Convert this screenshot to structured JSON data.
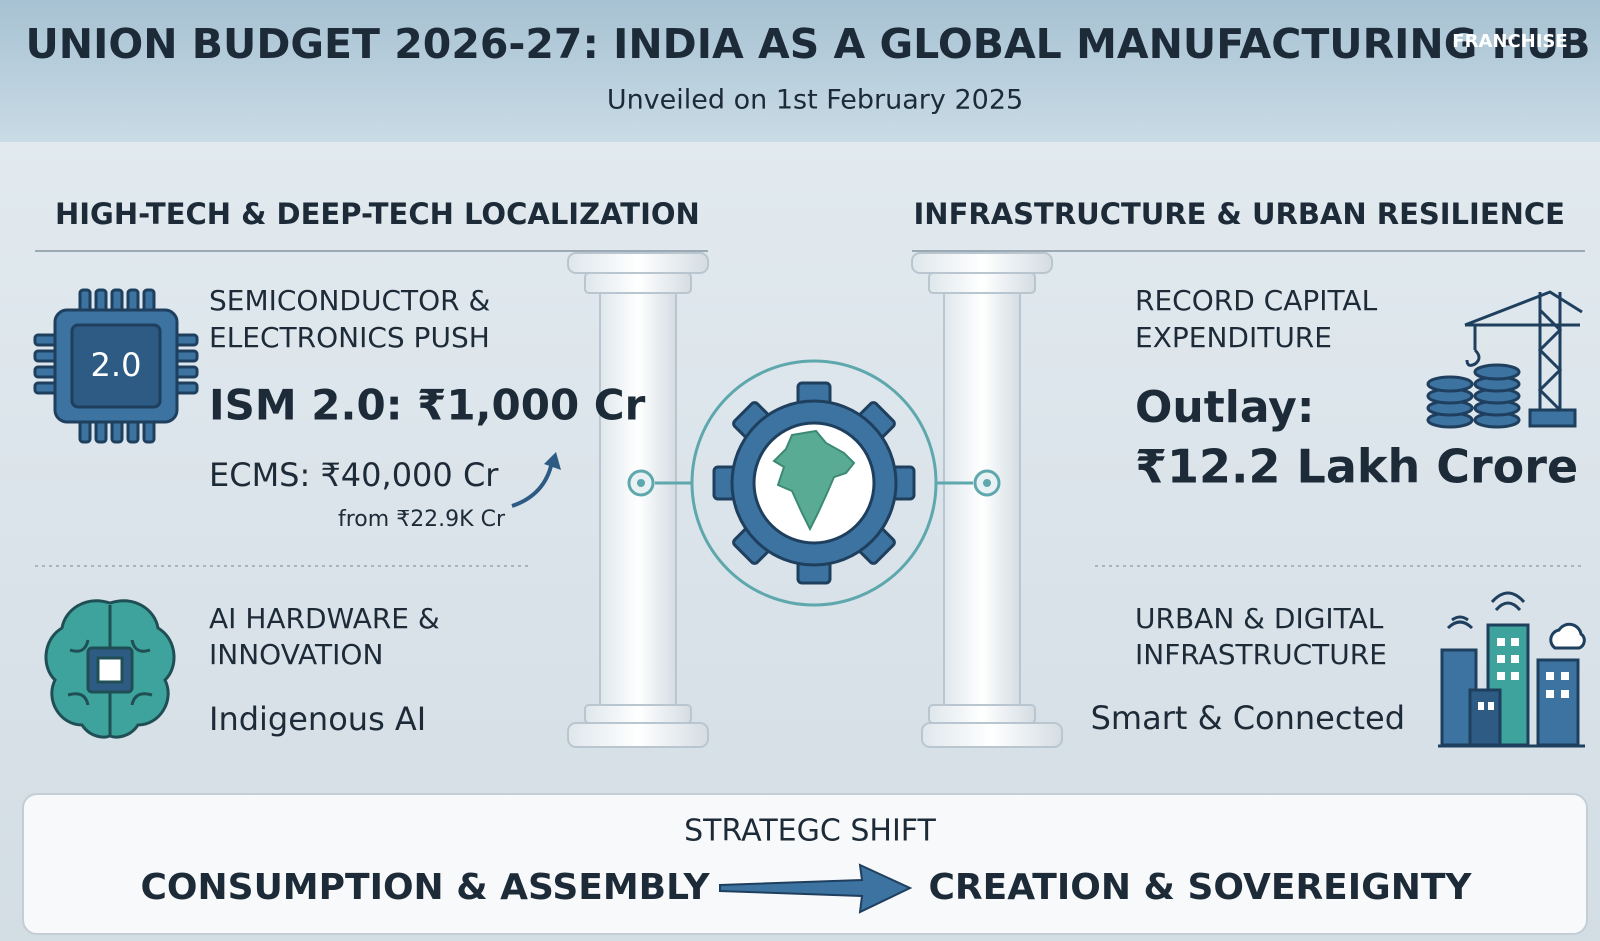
{
  "header": {
    "title": "UNION BUDGET 2026-27: INDIA AS A GLOBAL MANUFACTURING HUB",
    "subtitle": "Unveiled on 1st February 2025",
    "logo": "FRANCHISE"
  },
  "left": {
    "heading": "HIGH-TECH & DEEP-TECH LOCALIZATION",
    "items": [
      {
        "icon_label": "2.0",
        "title": [
          "SEMICONDUCTOR &",
          "ELECTRONICS PUSH"
        ],
        "highlight": "ISM 2.0: ₹1,000 Cr",
        "detail": "ECMS: ₹40,000 Cr",
        "note": "from ₹22.9K Cr"
      },
      {
        "title": [
          "AI HARDWARE &",
          "INNOVATION"
        ],
        "detail": "Indigenous AI"
      }
    ]
  },
  "right": {
    "heading": "INFRASTRUCTURE & URBAN RESILIENCE",
    "items": [
      {
        "title": [
          "RECORD CAPITAL",
          "EXPENDITURE"
        ],
        "highlight": [
          "Outlay:",
          "₹12.2 Lakh Crore"
        ]
      },
      {
        "title": [
          "URBAN & DIGITAL",
          "INFRASTRUCTURE"
        ],
        "detail": "Smart & Connected"
      }
    ]
  },
  "footer": {
    "label": "STRATEGC SHIFT",
    "from": "CONSUMPTION & ASSEMBLY",
    "to": "CREATION & SOVEREIGNTY"
  }
}
